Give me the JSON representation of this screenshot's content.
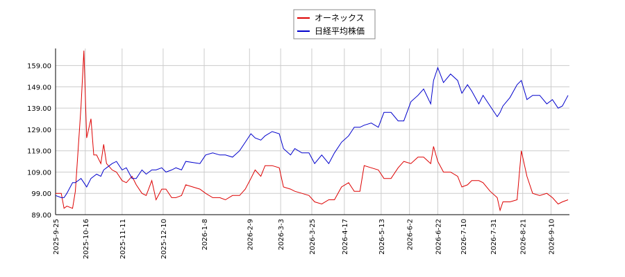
{
  "chart_data": {
    "type": "line",
    "x": [
      "2025-09-25",
      "2025-09-29",
      "2025-10-01",
      "2025-10-03",
      "2025-10-07",
      "2025-10-09",
      "2025-10-13",
      "2025-10-15",
      "2025-10-17",
      "2025-10-20",
      "2025-10-22",
      "2025-10-24",
      "2025-10-27",
      "2025-10-29",
      "2025-10-31",
      "2025-11-04",
      "2025-11-07",
      "2025-11-11",
      "2025-11-14",
      "2025-11-18",
      "2025-11-21",
      "2025-11-25",
      "2025-11-28",
      "2025-12-02",
      "2025-12-05",
      "2025-12-09",
      "2025-12-12",
      "2025-12-16",
      "2025-12-19",
      "2025-12-23",
      "2025-12-26",
      "2026-01-05",
      "2026-01-09",
      "2026-01-14",
      "2026-01-19",
      "2026-01-23",
      "2026-01-28",
      "2026-02-02",
      "2026-02-06",
      "2026-02-10",
      "2026-02-13",
      "2026-02-17",
      "2026-02-20",
      "2026-02-25",
      "2026-03-02",
      "2026-03-05",
      "2026-03-10",
      "2026-03-13",
      "2026-03-18",
      "2026-03-23",
      "2026-03-27",
      "2026-04-01",
      "2026-04-06",
      "2026-04-10",
      "2026-04-15",
      "2026-04-20",
      "2026-04-24",
      "2026-04-28",
      "2026-05-01",
      "2026-05-06",
      "2026-05-11",
      "2026-05-15",
      "2026-05-20",
      "2026-05-25",
      "2026-05-29",
      "2026-06-03",
      "2026-06-08",
      "2026-06-12",
      "2026-06-17",
      "2026-06-19",
      "2026-06-22",
      "2026-06-26",
      "2026-07-01",
      "2026-07-06",
      "2026-07-09",
      "2026-07-13",
      "2026-07-16",
      "2026-07-21",
      "2026-07-24",
      "2026-07-29",
      "2026-08-03",
      "2026-08-05",
      "2026-08-07",
      "2026-08-12",
      "2026-08-17",
      "2026-08-20",
      "2026-08-24",
      "2026-08-28",
      "2026-09-02",
      "2026-09-07",
      "2026-09-11",
      "2026-09-15",
      "2026-09-18",
      "2026-09-22"
    ],
    "series": [
      {
        "name": "オーネックス",
        "color": "#dd0000",
        "values": [
          99,
          99,
          92,
          93,
          92,
          100,
          140,
          166,
          125,
          134,
          117,
          117,
          113,
          122,
          113,
          110,
          109,
          105,
          104,
          107,
          103,
          99,
          98,
          105,
          96,
          101,
          101,
          97,
          97,
          98,
          103,
          101,
          99,
          97,
          97,
          96,
          98,
          98,
          101,
          106,
          110,
          107,
          112,
          112,
          111,
          102,
          101,
          100,
          99,
          98,
          95,
          94,
          96,
          96,
          102,
          104,
          100,
          100,
          112,
          111,
          110,
          106,
          106,
          111,
          114,
          113,
          116,
          116,
          113,
          121,
          114,
          109,
          109,
          107,
          102,
          103,
          105,
          105,
          104,
          100,
          97,
          91,
          95,
          95,
          96,
          119,
          107,
          99,
          98,
          99,
          97,
          94,
          95,
          96
        ]
      },
      {
        "name": "日経平均株価",
        "color": "#0000cc",
        "values": [
          98,
          97,
          97,
          99,
          104,
          104,
          106,
          104,
          102,
          106,
          107,
          108,
          107,
          110,
          111,
          113,
          114,
          110,
          111,
          106,
          106,
          110,
          108,
          110,
          110,
          111,
          109,
          110,
          111,
          110,
          114,
          113,
          117,
          118,
          117,
          117,
          116,
          119,
          123,
          127,
          125,
          124,
          126,
          128,
          127,
          120,
          117,
          120,
          118,
          118,
          113,
          117,
          113,
          118,
          123,
          126,
          130,
          130,
          131,
          132,
          130,
          137,
          137,
          133,
          133,
          142,
          145,
          148,
          141,
          152,
          158,
          151,
          155,
          152,
          146,
          150,
          147,
          141,
          145,
          140,
          135,
          137,
          140,
          144,
          150,
          152,
          143,
          145,
          145,
          141,
          143,
          139,
          140,
          145
        ]
      }
    ],
    "xlim": [
      "2025-09-25",
      "2026-09-23"
    ],
    "xticks": [
      {
        "value": "2025-09-25",
        "label": "2025-9-25"
      },
      {
        "value": "2025-10-16",
        "label": "2025-10-16"
      },
      {
        "value": "2025-11-11",
        "label": "2025-11-11"
      },
      {
        "value": "2025-12-10",
        "label": "2025-12-10"
      },
      {
        "value": "2026-01-08",
        "label": "2026-1-8"
      },
      {
        "value": "2026-02-09",
        "label": "2026-2-9"
      },
      {
        "value": "2026-03-03",
        "label": "2026-3-3"
      },
      {
        "value": "2026-03-25",
        "label": "2026-3-25"
      },
      {
        "value": "2026-04-17",
        "label": "2026-4-17"
      },
      {
        "value": "2026-05-13",
        "label": "2026-5-13"
      },
      {
        "value": "2026-06-02",
        "label": "2026-6-2"
      },
      {
        "value": "2026-06-22",
        "label": "2026-6-22"
      },
      {
        "value": "2026-07-10",
        "label": "2026-7-10"
      },
      {
        "value": "2026-07-31",
        "label": "2026-7-31"
      },
      {
        "value": "2026-08-21",
        "label": "2026-8-21"
      },
      {
        "value": "2026-09-10",
        "label": "2026-9-10"
      }
    ],
    "ylim": [
      89,
      167
    ],
    "yticks": [
      {
        "value": 89,
        "label": "89.00"
      },
      {
        "value": 99,
        "label": "99.00"
      },
      {
        "value": 109,
        "label": "109.00"
      },
      {
        "value": 119,
        "label": "119.00"
      },
      {
        "value": 129,
        "label": "129.00"
      },
      {
        "value": 139,
        "label": "139.00"
      },
      {
        "value": 149,
        "label": "149.00"
      },
      {
        "value": 159,
        "label": "159.00"
      }
    ],
    "grid": true
  }
}
